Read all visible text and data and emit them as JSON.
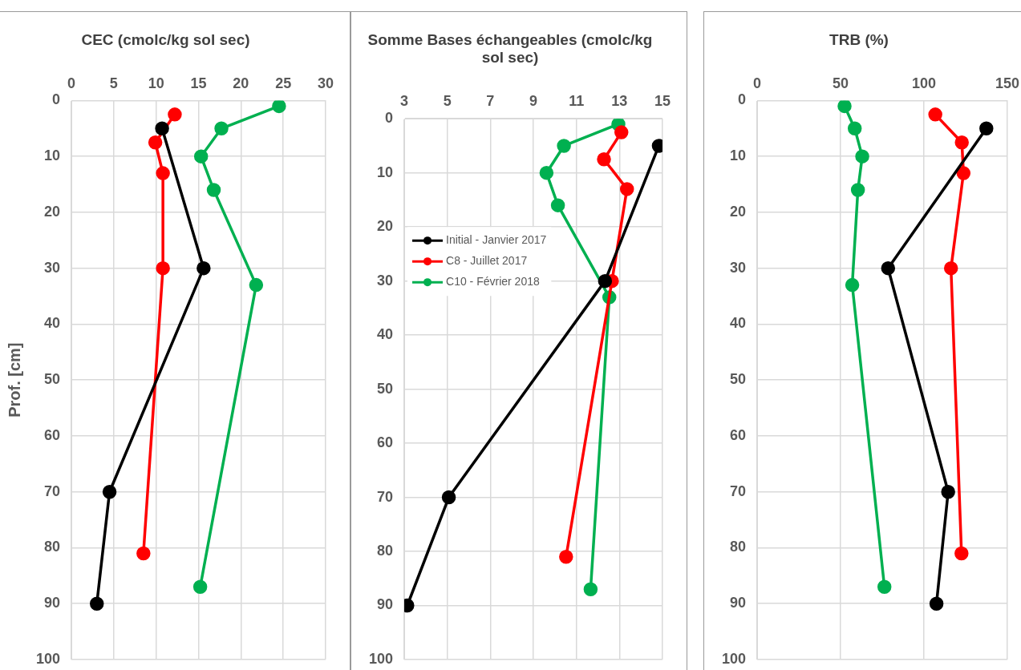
{
  "chart_data": [
    {
      "type": "line",
      "title": "CEC (cmolc/kg sol sec)",
      "ylabel": "Prof. [cm]",
      "xlim": [
        0,
        30
      ],
      "xticks": [
        0,
        5,
        10,
        15,
        20,
        25,
        30
      ],
      "ylim": [
        100,
        0
      ],
      "yticks": [
        0,
        10,
        20,
        30,
        40,
        50,
        60,
        70,
        80,
        90,
        100
      ],
      "grid": true,
      "marker": "circle",
      "legend": false,
      "series": [
        {
          "color": "#000000",
          "x": [
            10.7,
            15.6,
            4.5,
            3.0
          ],
          "values": [
            5,
            30,
            70,
            90
          ]
        },
        {
          "color": "#ff0000",
          "x": [
            12.2,
            9.9,
            10.8,
            10.8,
            8.5
          ],
          "values": [
            2.5,
            7.5,
            13,
            30,
            81
          ]
        },
        {
          "color": "#00b050",
          "x": [
            24.5,
            17.7,
            15.3,
            16.8,
            21.8,
            15.2
          ],
          "values": [
            1,
            5,
            10,
            16,
            33,
            87
          ]
        }
      ]
    },
    {
      "type": "line",
      "title": "Somme Bases échangeables (cmolc/kg sol sec)",
      "xlim": [
        3,
        15
      ],
      "xticks": [
        3,
        5,
        7,
        9,
        11,
        13,
        15
      ],
      "ylim": [
        100,
        0
      ],
      "yticks": [
        0,
        10,
        20,
        30,
        40,
        50,
        60,
        70,
        80,
        90,
        100
      ],
      "grid": true,
      "marker": "circle",
      "legend": "left",
      "series": [
        {
          "name": "Initial - Janvier 2017",
          "color": "#000000",
          "x": [
            14.83,
            12.33,
            5.07,
            3.14
          ],
          "values": [
            5,
            30,
            70,
            90
          ]
        },
        {
          "name": "C8 - Juillet 2017",
          "color": "#ff0000",
          "x": [
            13.09,
            12.28,
            13.35,
            12.65,
            10.52
          ],
          "values": [
            2.5,
            7.5,
            13,
            30,
            81
          ]
        },
        {
          "name": "C10 - Février 2018",
          "color": "#00b050",
          "x": [
            12.95,
            10.42,
            9.61,
            10.14,
            12.53,
            11.66
          ],
          "values": [
            1,
            5,
            10,
            16,
            33,
            87
          ]
        }
      ]
    },
    {
      "type": "line",
      "title": "TRB (%)",
      "xlim": [
        0,
        150
      ],
      "xticks": [
        0,
        50,
        100,
        150
      ],
      "ylim": [
        100,
        0
      ],
      "yticks": [
        0,
        10,
        20,
        30,
        40,
        50,
        60,
        70,
        80,
        90,
        100
      ],
      "grid": true,
      "marker": "circle",
      "legend": false,
      "series": [
        {
          "color": "#000000",
          "x": [
            137.4,
            78.5,
            114.5,
            107.5
          ],
          "values": [
            5,
            30,
            70,
            90
          ]
        },
        {
          "color": "#ff0000",
          "x": [
            106.8,
            122.7,
            123.7,
            116.2,
            122.5
          ],
          "values": [
            2.5,
            7.5,
            13,
            30,
            81
          ]
        },
        {
          "color": "#00b050",
          "x": [
            52.4,
            58.5,
            63,
            60.4,
            57,
            76.3
          ],
          "values": [
            1,
            5,
            10,
            16,
            33,
            87
          ]
        }
      ]
    }
  ]
}
